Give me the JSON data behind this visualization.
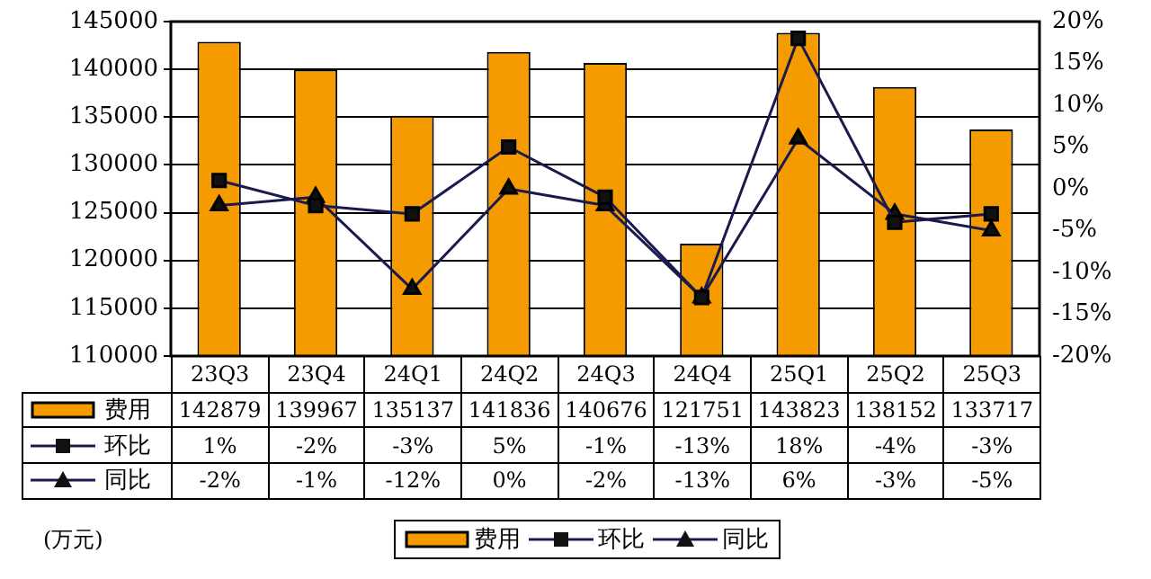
{
  "chart_data": {
    "type": "bar",
    "categories": [
      "23Q3",
      "23Q4",
      "24Q1",
      "24Q2",
      "24Q3",
      "24Q4",
      "25Q1",
      "25Q2",
      "25Q3"
    ],
    "series": [
      {
        "name": "费用",
        "color": "#f59b00",
        "values": [
          142879,
          139967,
          135137,
          141836,
          140676,
          121751,
          143823,
          138152,
          133717
        ],
        "value_labels": [
          "142879",
          "139967",
          "135137",
          "141836",
          "140676",
          "121751",
          "143823",
          "138152",
          "133717"
        ]
      },
      {
        "name": "环比",
        "type": "line",
        "axis": "y2",
        "marker": "square",
        "color": "#1a1a4e",
        "values": [
          1,
          -2,
          -3,
          5,
          -1,
          -13,
          18,
          -4,
          -3
        ],
        "value_labels": [
          "1%",
          "-2%",
          "-3%",
          "5%",
          "-1%",
          "-13%",
          "18%",
          "-4%",
          "-3%"
        ]
      },
      {
        "name": "同比",
        "type": "line",
        "axis": "y2",
        "marker": "triangle",
        "color": "#1a1a4e",
        "values": [
          -2,
          -1,
          -12,
          0,
          -2,
          -13,
          6,
          -3,
          -5
        ],
        "value_labels": [
          "-2%",
          "-1%",
          "-12%",
          "0%",
          "-2%",
          "-13%",
          "6%",
          "-3%",
          "-5%"
        ]
      }
    ],
    "ylim": [
      110000,
      145000
    ],
    "yticks": [
      110000,
      115000,
      120000,
      125000,
      130000,
      135000,
      140000,
      145000
    ],
    "y2lim": [
      -20,
      20
    ],
    "y2ticks": [
      {
        "value": -20,
        "label": "-20%"
      },
      {
        "value": -15,
        "label": "-15%"
      },
      {
        "value": -10,
        "label": "-10%"
      },
      {
        "value": -5,
        "label": "-5%"
      },
      {
        "value": 0,
        "label": "0%"
      },
      {
        "value": 5,
        "label": "5%"
      },
      {
        "value": 10,
        "label": "10%"
      },
      {
        "value": 15,
        "label": "15%"
      },
      {
        "value": 20,
        "label": "20%"
      }
    ],
    "grid": "y",
    "legend": "bottom",
    "annotations": [
      "(万元)"
    ]
  }
}
